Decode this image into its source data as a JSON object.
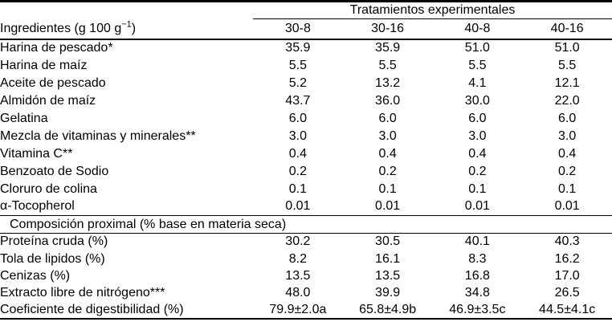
{
  "chart_data": {
    "type": "table",
    "group_header": "Tratamientos experimentales",
    "row_header": {
      "text": "Ingredientes (g 100 g",
      "sup": "−1",
      "after_sup": ")"
    },
    "columns": [
      "30-8",
      "30-16",
      "40-8",
      "40-16"
    ],
    "ingredient_rows": [
      {
        "label": "Harina de pescado*",
        "values": [
          "35.9",
          "35.9",
          "51.0",
          "51.0"
        ]
      },
      {
        "label": "Harina de maíz",
        "values": [
          "5.5",
          "5.5",
          "5.5",
          "5.5"
        ]
      },
      {
        "label": "Aceite de pescado",
        "values": [
          "5.2",
          "13.2",
          "4.1",
          "12.1"
        ]
      },
      {
        "label": "Almidón de maíz",
        "values": [
          "43.7",
          "36.0",
          "30.0",
          "22.0"
        ]
      },
      {
        "label": "Gelatina",
        "values": [
          "6.0",
          "6.0",
          "6.0",
          "6.0"
        ]
      },
      {
        "label": "Mezcla de vitaminas y minerales**",
        "values": [
          "3.0",
          "3.0",
          "3.0",
          "3.0"
        ]
      },
      {
        "label": "Vitamina C**",
        "values": [
          "0.4",
          "0.4",
          "0.4",
          "0.4"
        ]
      },
      {
        "label": "Benzoato de Sodio",
        "values": [
          "0.2",
          "0.2",
          "0.2",
          "0.2"
        ]
      },
      {
        "label": "Cloruro de colina",
        "values": [
          "0.1",
          "0.1",
          "0.1",
          "0.1"
        ]
      },
      {
        "label": "α-Tocopherol",
        "values": [
          "0.01",
          "0.01",
          "0.01",
          "0.01"
        ]
      }
    ],
    "section_header": "Composición proximal (% base en materia seca)",
    "proximal_rows": [
      {
        "label": "Proteína cruda (%)",
        "values": [
          "30.2",
          "30.5",
          "40.1",
          "40.3"
        ]
      },
      {
        "label": "Tola de lipidos (%)",
        "values": [
          "8.2",
          "16.1",
          "8.3",
          "16.2"
        ]
      },
      {
        "label": "Cenizas (%)",
        "values": [
          "13.5",
          "13.5",
          "16.8",
          "17.0"
        ]
      },
      {
        "label": "Extracto libre de nitrógeno***",
        "values": [
          "48.0",
          "39.9",
          "34.8",
          "26.5"
        ]
      },
      {
        "label": "Coeficiente de digestibilidad (%)",
        "values": [
          "79.9±2.0a",
          "65.8±4.9b",
          "46.9±3.5c",
          "44.5±4.1c"
        ]
      }
    ],
    "colors": {
      "background": "#ffffff",
      "text": "#000000",
      "rule": "#000000"
    }
  }
}
